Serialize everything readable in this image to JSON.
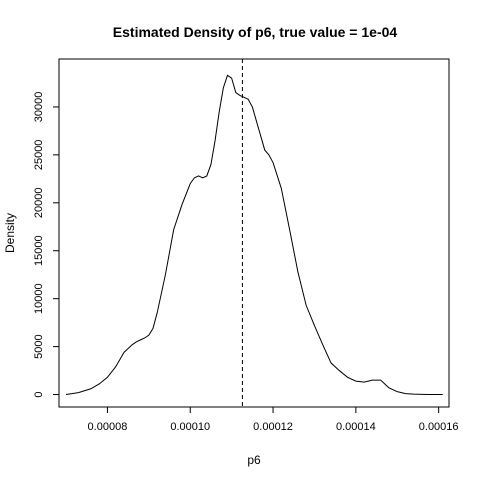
{
  "chart_data": {
    "type": "line",
    "title": "Estimated Density of p6, true value = 1e-04",
    "xlabel": "p6",
    "ylabel": "Density",
    "xlim": [
      6.83e-05,
      0.0001625
    ],
    "ylim": [
      -1300,
      35000
    ],
    "x_ticks": [
      8e-05,
      0.0001,
      0.00012,
      0.00014,
      0.00016
    ],
    "x_tick_labels": [
      "0.00008",
      "0.00010",
      "0.00012",
      "0.00014",
      "0.00016"
    ],
    "y_ticks": [
      0,
      5000,
      10000,
      15000,
      20000,
      25000,
      30000
    ],
    "y_tick_labels": [
      "0",
      "5000",
      "10000",
      "15000",
      "20000",
      "25000",
      "30000"
    ],
    "reference_line": {
      "x": 0.0001126,
      "style": "dashed"
    },
    "grid": false,
    "series": [
      {
        "x": [
          7e-05,
          7.3e-05,
          7.6e-05,
          7.8e-05,
          8e-05,
          8.2e-05,
          8.4e-05,
          8.6e-05,
          8.7e-05,
          8.8e-05,
          8.9e-05,
          9e-05,
          9.1e-05,
          9.2e-05,
          9.4e-05,
          9.6e-05,
          9.8e-05,
          0.0001,
          0.000101,
          0.000102,
          0.000103,
          0.000104,
          0.000105,
          0.000106,
          0.000107,
          0.000108,
          0.000109,
          0.00011,
          0.000111,
          0.000112,
          0.000113,
          0.000114,
          0.000115,
          0.000116,
          0.000117,
          0.000118,
          0.000119,
          0.00012,
          0.000122,
          0.000124,
          0.000126,
          0.000128,
          0.00013,
          0.000132,
          0.000134,
          0.000136,
          0.000138,
          0.00014,
          0.000142,
          0.000144,
          0.000146,
          0.000147,
          0.000148,
          0.00015,
          0.000152,
          0.000154,
          0.000156,
          0.000158,
          0.000161
        ],
        "y": [
          0,
          200,
          600,
          1100,
          1800,
          2900,
          4400,
          5200,
          5500,
          5700,
          5900,
          6200,
          6900,
          8500,
          12500,
          17200,
          19800,
          22000,
          22600,
          22800,
          22600,
          22800,
          24000,
          26500,
          29500,
          32000,
          33300,
          33000,
          31500,
          31200,
          31000,
          30800,
          30000,
          28500,
          27000,
          25500,
          25000,
          24200,
          21500,
          17200,
          12800,
          9300,
          7200,
          5200,
          3300,
          2500,
          1800,
          1400,
          1300,
          1500,
          1500,
          1100,
          700,
          300,
          100,
          40,
          20,
          10,
          0
        ]
      }
    ]
  }
}
